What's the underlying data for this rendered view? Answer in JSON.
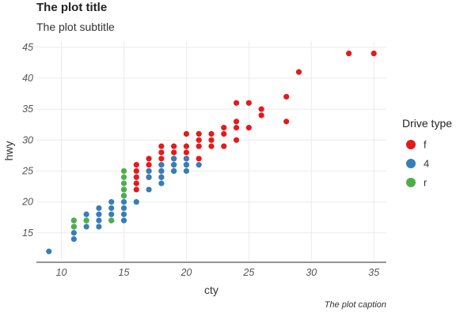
{
  "chart_data": {
    "type": "scatter",
    "title": "The plot title",
    "subtitle": "The plot subtitle",
    "caption": "The plot caption",
    "xlabel": "cty",
    "ylabel": "hwy",
    "xlim": [
      8,
      36
    ],
    "ylim": [
      10.5,
      46
    ],
    "x_ticks": [
      10,
      15,
      20,
      25,
      30,
      35
    ],
    "y_ticks": [
      15,
      20,
      25,
      30,
      35,
      40,
      45
    ],
    "grid": true,
    "legend": {
      "title": "Drive type",
      "position": "right"
    },
    "series": [
      {
        "name": "f",
        "color": "#e41a1c",
        "points": [
          [
            16,
            22
          ],
          [
            16,
            23
          ],
          [
            16,
            24
          ],
          [
            16,
            25
          ],
          [
            16,
            26
          ],
          [
            17,
            24
          ],
          [
            17,
            25
          ],
          [
            17,
            26
          ],
          [
            17,
            27
          ],
          [
            18,
            24
          ],
          [
            18,
            25
          ],
          [
            18,
            26
          ],
          [
            18,
            27
          ],
          [
            18,
            28
          ],
          [
            18,
            29
          ],
          [
            19,
            25
          ],
          [
            19,
            26
          ],
          [
            19,
            27
          ],
          [
            19,
            28
          ],
          [
            19,
            29
          ],
          [
            20,
            26
          ],
          [
            20,
            27
          ],
          [
            20,
            28
          ],
          [
            20,
            29
          ],
          [
            20,
            31
          ],
          [
            21,
            27
          ],
          [
            21,
            29
          ],
          [
            21,
            30
          ],
          [
            21,
            31
          ],
          [
            22,
            29
          ],
          [
            22,
            30
          ],
          [
            22,
            31
          ],
          [
            23,
            29
          ],
          [
            23,
            31
          ],
          [
            23,
            32
          ],
          [
            24,
            30
          ],
          [
            24,
            32
          ],
          [
            24,
            33
          ],
          [
            24,
            36
          ],
          [
            25,
            32
          ],
          [
            25,
            36
          ],
          [
            26,
            34
          ],
          [
            26,
            35
          ],
          [
            28,
            33
          ],
          [
            28,
            37
          ],
          [
            29,
            41
          ],
          [
            33,
            44
          ],
          [
            35,
            44
          ]
        ]
      },
      {
        "name": "4",
        "color": "#377eb8",
        "points": [
          [
            9,
            12
          ],
          [
            11,
            14
          ],
          [
            11,
            15
          ],
          [
            11,
            16
          ],
          [
            11,
            17
          ],
          [
            12,
            16
          ],
          [
            12,
            17
          ],
          [
            12,
            18
          ],
          [
            13,
            16
          ],
          [
            13,
            17
          ],
          [
            13,
            18
          ],
          [
            13,
            19
          ],
          [
            14,
            17
          ],
          [
            14,
            18
          ],
          [
            14,
            19
          ],
          [
            14,
            20
          ],
          [
            15,
            17
          ],
          [
            15,
            18
          ],
          [
            15,
            19
          ],
          [
            15,
            20
          ],
          [
            15,
            21
          ],
          [
            15,
            22
          ],
          [
            16,
            20
          ],
          [
            17,
            22
          ],
          [
            17,
            24
          ],
          [
            17,
            25
          ],
          [
            18,
            23
          ],
          [
            18,
            24
          ],
          [
            18,
            25
          ],
          [
            18,
            26
          ],
          [
            19,
            25
          ],
          [
            19,
            26
          ],
          [
            19,
            27
          ],
          [
            20,
            25
          ],
          [
            20,
            26
          ],
          [
            20,
            27
          ],
          [
            21,
            26
          ]
        ]
      },
      {
        "name": "r",
        "color": "#4daf4a",
        "points": [
          [
            11,
            16
          ],
          [
            11,
            17
          ],
          [
            12,
            17
          ],
          [
            14,
            17
          ],
          [
            15,
            21
          ],
          [
            15,
            22
          ],
          [
            15,
            23
          ],
          [
            15,
            24
          ],
          [
            15,
            25
          ]
        ]
      }
    ]
  }
}
